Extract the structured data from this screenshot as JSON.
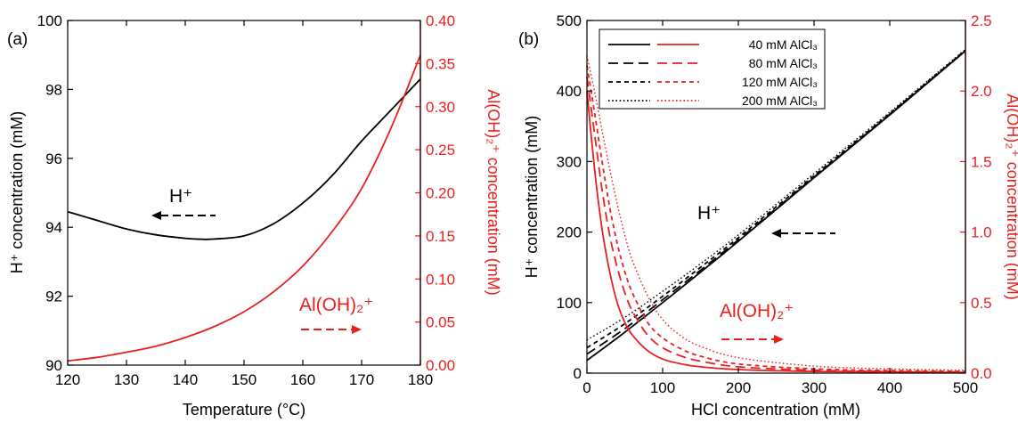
{
  "colors": {
    "left_axis": "#000000",
    "right_axis": "#e8201f"
  },
  "chart_data": [
    {
      "panel_label": "(a)",
      "type": "line",
      "xlabel": "Temperature (°C)",
      "ylabel_left": "H⁺ concentration (mM)",
      "ylabel_right": "Al(OH)₂⁺ concentration (mM)",
      "xlim": [
        120,
        180
      ],
      "ylim_left": [
        90,
        100
      ],
      "ylim_right": [
        0,
        0.4
      ],
      "x_ticks": [
        "120",
        "130",
        "140",
        "150",
        "160",
        "170",
        "180"
      ],
      "y_left_ticks": [
        "90",
        "92",
        "94",
        "96",
        "98",
        "100"
      ],
      "y_right_ticks": [
        "0.00",
        "0.05",
        "0.10",
        "0.15",
        "0.20",
        "0.25",
        "0.30",
        "0.35",
        "0.40"
      ],
      "annotations": {
        "h_label": "H⁺",
        "al_label": "Al(OH)₂⁺"
      },
      "series": [
        {
          "axis": "left",
          "color": "#000000",
          "x": [
            120,
            125,
            130,
            135,
            140,
            143,
            145,
            150,
            155,
            160,
            165,
            170,
            175,
            180
          ],
          "y": [
            94.45,
            94.2,
            93.95,
            93.78,
            93.68,
            93.65,
            93.66,
            93.75,
            94.1,
            94.7,
            95.5,
            96.5,
            97.4,
            98.3
          ]
        },
        {
          "axis": "right",
          "color": "#e8201f",
          "x": [
            120,
            125,
            130,
            135,
            140,
            145,
            150,
            155,
            160,
            165,
            170,
            175,
            180
          ],
          "y": [
            0.005,
            0.009,
            0.015,
            0.022,
            0.032,
            0.045,
            0.062,
            0.085,
            0.115,
            0.155,
            0.205,
            0.275,
            0.36
          ]
        }
      ]
    },
    {
      "panel_label": "(b)",
      "type": "line",
      "xlabel": "HCl concentration (mM)",
      "ylabel_left": "H⁺ concentration (mM)",
      "ylabel_right": "Al(OH)₂⁺ concentration (mM)",
      "xlim": [
        0,
        500
      ],
      "ylim_left": [
        0,
        500
      ],
      "ylim_right": [
        0,
        2.5
      ],
      "x_ticks": [
        "0",
        "100",
        "200",
        "300",
        "400",
        "500"
      ],
      "y_left_ticks": [
        "0",
        "100",
        "200",
        "300",
        "400",
        "500"
      ],
      "y_right_ticks": [
        "0.0",
        "0.5",
        "1.0",
        "1.5",
        "2.0",
        "2.5"
      ],
      "annotations": {
        "h_label": "H⁺",
        "al_label": "Al(OH)₂⁺"
      },
      "legend": [
        "40 mM AlCl₃",
        "80 mM AlCl₃",
        "120 mM AlCl₃",
        "200 mM AlCl₃"
      ],
      "legend_position": "top",
      "series": [
        {
          "name": "40 mM AlCl₃",
          "axis": "left",
          "color": "#000000",
          "dash": "solid",
          "x": [
            0,
            50,
            100,
            150,
            200,
            300,
            400,
            500
          ],
          "y": [
            18,
            58,
            100,
            143,
            187,
            277,
            366,
            457
          ]
        },
        {
          "name": "80 mM AlCl₃",
          "axis": "left",
          "color": "#000000",
          "dash": "dash",
          "x": [
            0,
            50,
            100,
            150,
            200,
            300,
            400,
            500
          ],
          "y": [
            27,
            63,
            104,
            146,
            189,
            278,
            367,
            457
          ]
        },
        {
          "name": "120 mM AlCl₃",
          "axis": "left",
          "color": "#000000",
          "dash": "shortdash",
          "x": [
            0,
            50,
            100,
            150,
            200,
            300,
            400,
            500
          ],
          "y": [
            36,
            70,
            109,
            150,
            192,
            280,
            368,
            458
          ]
        },
        {
          "name": "200 mM AlCl₃",
          "axis": "left",
          "color": "#000000",
          "dash": "dot",
          "x": [
            0,
            50,
            100,
            150,
            200,
            300,
            400,
            500
          ],
          "y": [
            47,
            79,
            116,
            155,
            196,
            283,
            370,
            459
          ]
        },
        {
          "name": "40 mM AlCl₃",
          "axis": "right",
          "color": "#e8201f",
          "dash": "solid",
          "x": [
            0,
            10,
            20,
            30,
            40,
            50,
            60,
            80,
            100,
            125,
            150,
            200,
            300,
            400,
            500
          ],
          "y": [
            2.0,
            1.45,
            1.02,
            0.72,
            0.5,
            0.36,
            0.27,
            0.16,
            0.1,
            0.065,
            0.045,
            0.025,
            0.012,
            0.008,
            0.005
          ]
        },
        {
          "name": "80 mM AlCl₃",
          "axis": "right",
          "color": "#e8201f",
          "dash": "dash",
          "x": [
            0,
            10,
            20,
            30,
            40,
            50,
            60,
            80,
            100,
            125,
            150,
            200,
            300,
            400,
            500
          ],
          "y": [
            2.1,
            1.7,
            1.3,
            0.98,
            0.75,
            0.57,
            0.44,
            0.27,
            0.18,
            0.12,
            0.085,
            0.045,
            0.02,
            0.012,
            0.008
          ]
        },
        {
          "name": "120 mM AlCl₃",
          "axis": "right",
          "color": "#e8201f",
          "dash": "shortdash",
          "x": [
            0,
            10,
            20,
            30,
            40,
            50,
            60,
            80,
            100,
            125,
            150,
            200,
            300,
            400,
            500
          ],
          "y": [
            2.18,
            1.85,
            1.5,
            1.18,
            0.92,
            0.72,
            0.57,
            0.36,
            0.25,
            0.17,
            0.12,
            0.065,
            0.03,
            0.018,
            0.012
          ]
        },
        {
          "name": "200 mM AlCl₃",
          "axis": "right",
          "color": "#e8201f",
          "dash": "dot",
          "x": [
            0,
            10,
            20,
            30,
            40,
            50,
            60,
            80,
            100,
            125,
            150,
            200,
            300,
            400,
            500
          ],
          "y": [
            2.25,
            2.0,
            1.72,
            1.45,
            1.2,
            0.98,
            0.8,
            0.55,
            0.38,
            0.26,
            0.19,
            0.11,
            0.05,
            0.03,
            0.02
          ]
        }
      ]
    }
  ]
}
